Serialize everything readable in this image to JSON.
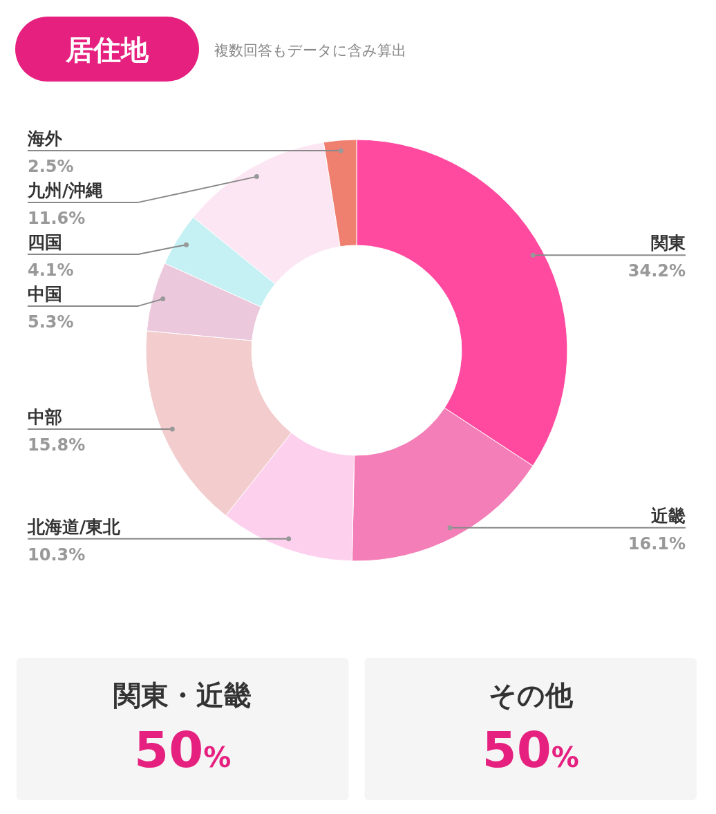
{
  "chart_data": [
    {
      "type": "donut",
      "title": "居住地",
      "subtitle": "複数回答もデータに含み算出",
      "categories": [
        "関東",
        "近畿",
        "北海道/東北",
        "中部",
        "中国",
        "四国",
        "九州/沖縄",
        "海外"
      ],
      "values": [
        34.2,
        16.1,
        10.3,
        15.8,
        5.3,
        4.1,
        11.6,
        2.5
      ],
      "colors": [
        "#ff4aa0",
        "#f47fb8",
        "#fdd0ee",
        "#f3cccd",
        "#ebc8dc",
        "#c5f1f4",
        "#fde6f3",
        "#ef7f6f"
      ],
      "value_labels": [
        "34.2%",
        "16.1%",
        "10.3%",
        "15.8%",
        "5.3%",
        "4.1%",
        "11.6%",
        "2.5%"
      ]
    },
    {
      "type": "other",
      "annotations": [
        "関東・近畿",
        "50%",
        "その他",
        "50%"
      ]
    }
  ]
}
